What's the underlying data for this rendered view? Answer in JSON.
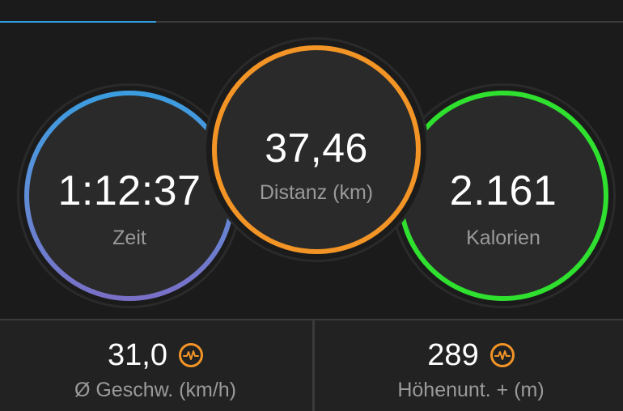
{
  "progress": {
    "fraction": 0.25,
    "color": "#2f9ee0"
  },
  "circles": {
    "time": {
      "value": "1:12:37",
      "label": "Zeit",
      "ring_colors": [
        "#3a9de0",
        "#7a6fc7"
      ]
    },
    "distance": {
      "value": "37,46",
      "label": "Distanz (km)",
      "ring_color": "#f29426"
    },
    "calories": {
      "value": "2.161",
      "label": "Kalorien",
      "ring_color": "#2fe02f"
    }
  },
  "stats": {
    "avg_speed": {
      "value": "31,0",
      "label": "Ø Geschw. (km/h)",
      "icon": "activity-pulse-icon"
    },
    "elevation_gain": {
      "value": "289",
      "label": "Höhenunt. + (m)",
      "icon": "activity-pulse-icon"
    }
  }
}
